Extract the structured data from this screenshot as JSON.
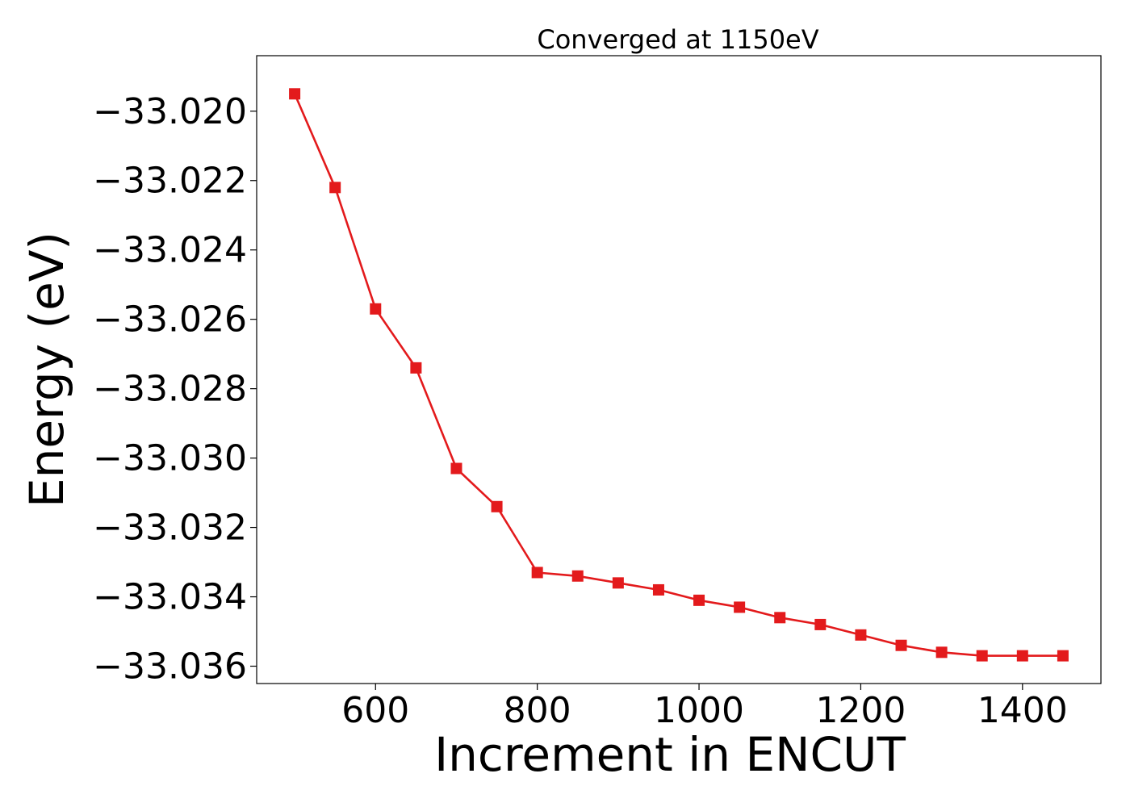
{
  "chart_data": {
    "type": "line",
    "title": "Converged at 1150eV",
    "xlabel": "Increment in ENCUT",
    "ylabel": "Energy (eV)",
    "xlim": [
      453,
      1497
    ],
    "ylim": [
      -33.0365,
      -33.0184
    ],
    "x_ticks": [
      600,
      800,
      1000,
      1200,
      1400
    ],
    "x_tick_labels": [
      "600",
      "800",
      "1000",
      "1200",
      "1400"
    ],
    "y_ticks": [
      -33.02,
      -33.022,
      -33.024,
      -33.026,
      -33.028,
      -33.03,
      -33.032,
      -33.034,
      -33.036
    ],
    "y_tick_labels": [
      "−33.020",
      "−33.022",
      "−33.024",
      "−33.026",
      "−33.028",
      "−33.030",
      "−33.032",
      "−33.034",
      "−33.036"
    ],
    "grid": false,
    "legend": false,
    "series": [
      {
        "color": "#e31a1c",
        "marker": "square",
        "x": [
          500,
          550,
          600,
          650,
          700,
          750,
          800,
          850,
          900,
          950,
          1000,
          1050,
          1100,
          1150,
          1200,
          1250,
          1300,
          1350,
          1400,
          1450
        ],
        "y": [
          -33.0195,
          -33.0222,
          -33.0257,
          -33.0274,
          -33.0303,
          -33.0314,
          -33.0333,
          -33.0334,
          -33.0336,
          -33.0338,
          -33.0341,
          -33.0343,
          -33.0346,
          -33.0348,
          -33.0351,
          -33.0354,
          -33.0356,
          -33.0357,
          -33.0357,
          -33.0357
        ]
      }
    ]
  }
}
